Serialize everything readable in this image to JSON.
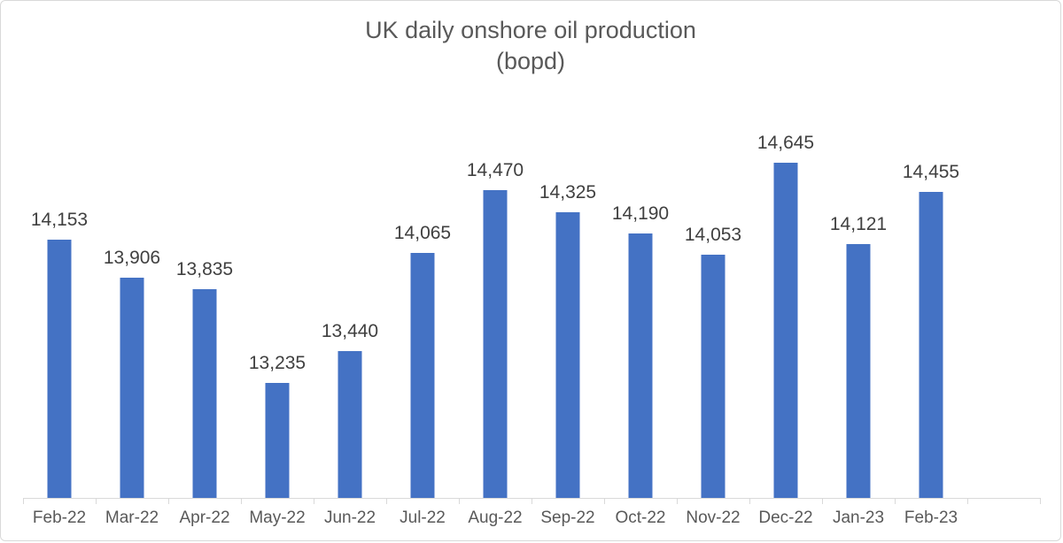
{
  "chart_data": {
    "type": "bar",
    "title": "UK daily onshore oil production",
    "subtitle": "(bopd)",
    "categories": [
      "Feb-22",
      "Mar-22",
      "Apr-22",
      "May-22",
      "Jun-22",
      "Jul-22",
      "Aug-22",
      "Sep-22",
      "Oct-22",
      "Nov-22",
      "Dec-22",
      "Jan-23",
      "Feb-23"
    ],
    "values": [
      14153,
      13906,
      13835,
      13235,
      13440,
      14065,
      14470,
      14325,
      14190,
      14053,
      14645,
      14121,
      14455
    ],
    "data_labels": [
      "14,153",
      "13,906",
      "13,835",
      "13,235",
      "13,440",
      "14,065",
      "14,470",
      "14,325",
      "14,190",
      "14,053",
      "14,645",
      "14,121",
      "14,455"
    ],
    "xlabel": "",
    "ylabel": "",
    "ylim": [
      12500,
      15000
    ],
    "grid": false,
    "legend": false,
    "y_axis_visible": false,
    "data_labels_visible": true,
    "extra_empty_category_slots": 1,
    "colors": {
      "bar": "#4472C4",
      "title": "#595959",
      "data_label": "#404040",
      "axis_label": "#595959",
      "axis_line": "#D9D9D9"
    }
  }
}
